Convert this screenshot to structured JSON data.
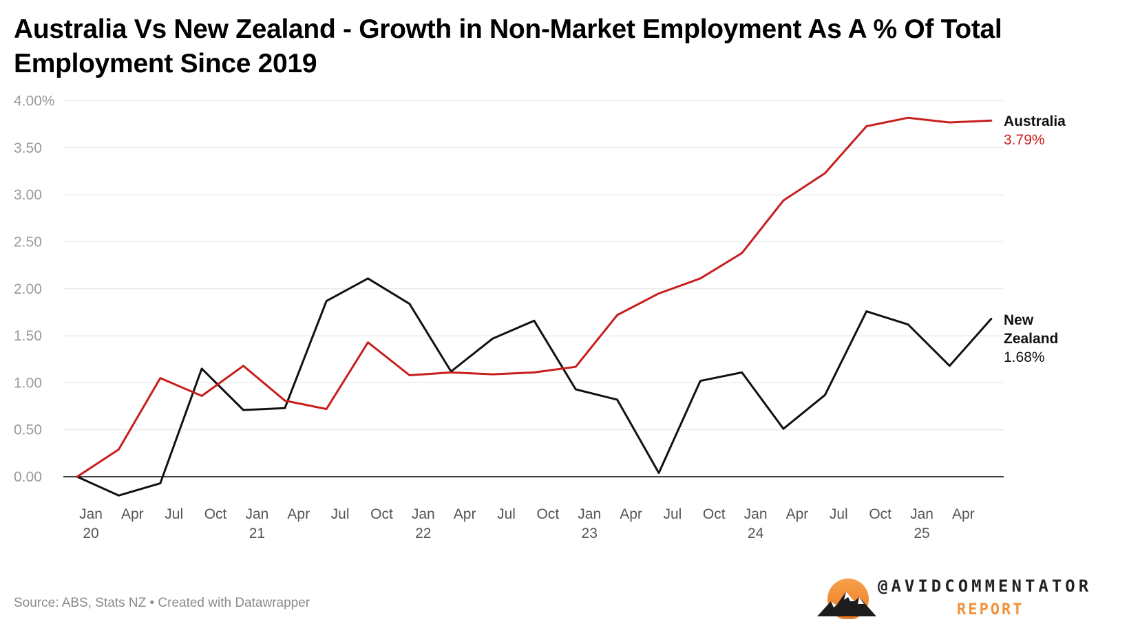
{
  "title": "Australia Vs New Zealand - Growth in Non-Market Employment As A % Of Total Employment Since 2019",
  "source": "Source: ABS, Stats NZ • Created with Datawrapper",
  "brand": {
    "handle": "@AVIDCOMMENTATOR",
    "subtitle": "REPORT"
  },
  "chart_data": {
    "type": "line",
    "title": "Australia Vs New Zealand - Growth in Non-Market Employment As A % Of Total Employment Since 2019",
    "xlabel": "",
    "ylabel": "",
    "ylim": [
      -0.2,
      4.0
    ],
    "yticks": [
      {
        "value": 4.0,
        "label": "4.00%"
      },
      {
        "value": 3.5,
        "label": "3.50"
      },
      {
        "value": 3.0,
        "label": "3.00"
      },
      {
        "value": 2.5,
        "label": "2.50"
      },
      {
        "value": 2.0,
        "label": "2.00"
      },
      {
        "value": 1.5,
        "label": "1.50"
      },
      {
        "value": 1.0,
        "label": "1.00"
      },
      {
        "value": 0.5,
        "label": "0.50"
      },
      {
        "value": 0.0,
        "label": "0.00"
      }
    ],
    "xticks": [
      {
        "pos": 0,
        "line1": "Jan",
        "line2": "20"
      },
      {
        "pos": 1,
        "line1": "Apr",
        "line2": ""
      },
      {
        "pos": 2,
        "line1": "Jul",
        "line2": ""
      },
      {
        "pos": 3,
        "line1": "Oct",
        "line2": ""
      },
      {
        "pos": 4,
        "line1": "Jan",
        "line2": "21"
      },
      {
        "pos": 5,
        "line1": "Apr",
        "line2": ""
      },
      {
        "pos": 6,
        "line1": "Jul",
        "line2": ""
      },
      {
        "pos": 7,
        "line1": "Oct",
        "line2": ""
      },
      {
        "pos": 8,
        "line1": "Jan",
        "line2": "22"
      },
      {
        "pos": 9,
        "line1": "Apr",
        "line2": ""
      },
      {
        "pos": 10,
        "line1": "Jul",
        "line2": ""
      },
      {
        "pos": 11,
        "line1": "Oct",
        "line2": ""
      },
      {
        "pos": 12,
        "line1": "Jan",
        "line2": "23"
      },
      {
        "pos": 13,
        "line1": "Apr",
        "line2": ""
      },
      {
        "pos": 14,
        "line1": "Jul",
        "line2": ""
      },
      {
        "pos": 15,
        "line1": "Oct",
        "line2": ""
      },
      {
        "pos": 16,
        "line1": "Jan",
        "line2": "24"
      },
      {
        "pos": 17,
        "line1": "Apr",
        "line2": ""
      },
      {
        "pos": 18,
        "line1": "Jul",
        "line2": ""
      },
      {
        "pos": 19,
        "line1": "Oct",
        "line2": ""
      },
      {
        "pos": 20,
        "line1": "Jan",
        "line2": "25"
      },
      {
        "pos": 21,
        "line1": "Apr",
        "line2": ""
      }
    ],
    "x": [
      -0.33,
      0.67,
      1.67,
      2.67,
      3.67,
      4.67,
      5.67,
      6.67,
      7.67,
      8.67,
      9.67,
      10.67,
      11.67,
      12.67,
      13.67,
      14.67,
      15.67,
      16.67,
      17.67,
      18.67,
      19.67,
      20.67,
      21.67
    ],
    "series": [
      {
        "name": "Australia",
        "color": "#c71e1d",
        "end_label": "3.79%",
        "values": [
          0.0,
          0.29,
          1.05,
          0.86,
          1.18,
          0.81,
          0.72,
          1.43,
          1.08,
          1.11,
          1.09,
          1.11,
          1.17,
          1.72,
          1.95,
          2.11,
          2.38,
          2.94,
          3.23,
          3.73,
          3.82,
          3.77,
          3.79
        ]
      },
      {
        "name": "New Zealand",
        "name_lines": [
          "New",
          "Zealand"
        ],
        "color": "#111111",
        "end_label": "1.68%",
        "values": [
          0.0,
          -0.2,
          -0.07,
          1.15,
          0.71,
          0.73,
          1.87,
          2.11,
          1.84,
          1.12,
          1.47,
          1.66,
          0.93,
          0.82,
          0.04,
          1.02,
          1.11,
          0.51,
          0.87,
          1.76,
          1.62,
          1.18,
          1.68
        ]
      }
    ]
  }
}
